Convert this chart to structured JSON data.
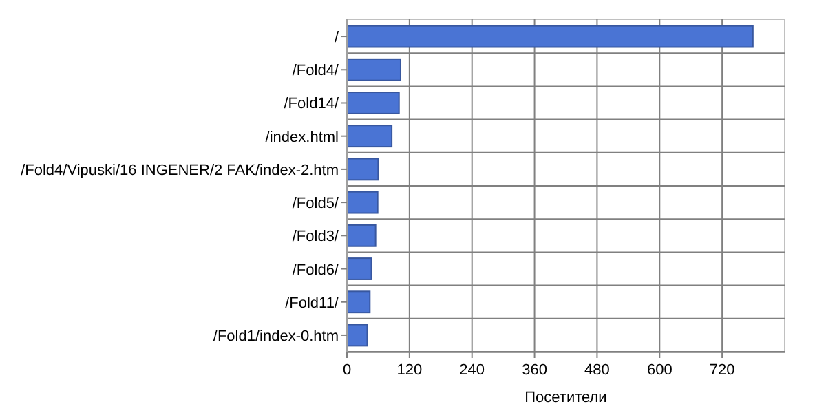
{
  "chart_data": {
    "type": "bar",
    "orientation": "horizontal",
    "xlabel": "Посетители",
    "categories": [
      "/",
      "/Fold4/",
      "/Fold14/",
      "/index.html",
      "/Fold4/Vipuski/16 INGENER/2 FAK/index-2.htm",
      "/Fold5/",
      "/Fold3/",
      "/Fold6/",
      "/Fold11/",
      "/Fold1/index-0.htm"
    ],
    "values": [
      779,
      103,
      100,
      86,
      60,
      59,
      55,
      47,
      44,
      39
    ],
    "color": "#4a74d4",
    "xlim": [
      0,
      840
    ],
    "xticks": [
      0,
      120,
      240,
      360,
      480,
      600,
      720
    ],
    "grid": true
  }
}
